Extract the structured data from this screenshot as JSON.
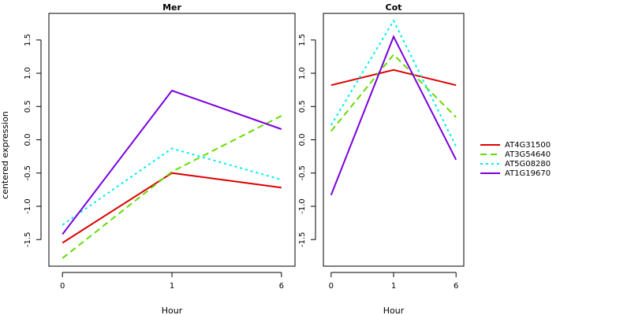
{
  "chart_data": {
    "type": "line",
    "ylabel": "centered expression",
    "legend": {
      "placement": "right",
      "entries": [
        "AT4G31500",
        "AT3G54640",
        "AT5G08280",
        "AT1G19670"
      ]
    },
    "panels": [
      {
        "title": "Mer",
        "xlabel": "Hour",
        "categories": [
          "0",
          "1",
          "6"
        ],
        "ylim": [
          -1.9,
          1.9
        ],
        "yticks": [
          "-1.5",
          "-1.0",
          "-0.5",
          "0.0",
          "0.5",
          "1.0",
          "1.5"
        ],
        "series": [
          {
            "name": "AT4G31500",
            "color": "#dd0000",
            "dash": "solid",
            "values": [
              -1.55,
              -0.5,
              -0.72
            ]
          },
          {
            "name": "AT3G54640",
            "color": "#66dd00",
            "dash": "dashed",
            "values": [
              -1.78,
              -0.48,
              0.36
            ]
          },
          {
            "name": "AT5G08280",
            "color": "#00eeee",
            "dash": "dotted",
            "values": [
              -1.28,
              -0.13,
              -0.6
            ]
          },
          {
            "name": "AT1G19670",
            "color": "#7a00dd",
            "dash": "solid",
            "values": [
              -1.42,
              0.74,
              0.16
            ]
          }
        ]
      },
      {
        "title": "Cot",
        "xlabel": "Hour",
        "categories": [
          "0",
          "1",
          "6"
        ],
        "ylim": [
          -1.9,
          1.9
        ],
        "yticks": [
          "-1.5",
          "-1.0",
          "-0.5",
          "0.0",
          "0.5",
          "1.0",
          "1.5"
        ],
        "series": [
          {
            "name": "AT4G31500",
            "color": "#dd0000",
            "dash": "solid",
            "values": [
              0.82,
              1.05,
              0.82
            ]
          },
          {
            "name": "AT3G54640",
            "color": "#66dd00",
            "dash": "dashed",
            "values": [
              0.13,
              1.28,
              0.34
            ]
          },
          {
            "name": "AT5G08280",
            "color": "#00eeee",
            "dash": "dotted",
            "values": [
              0.22,
              1.79,
              -0.1
            ]
          },
          {
            "name": "AT1G19670",
            "color": "#7a00dd",
            "dash": "solid",
            "values": [
              -0.83,
              1.55,
              -0.3
            ]
          }
        ]
      }
    ]
  }
}
